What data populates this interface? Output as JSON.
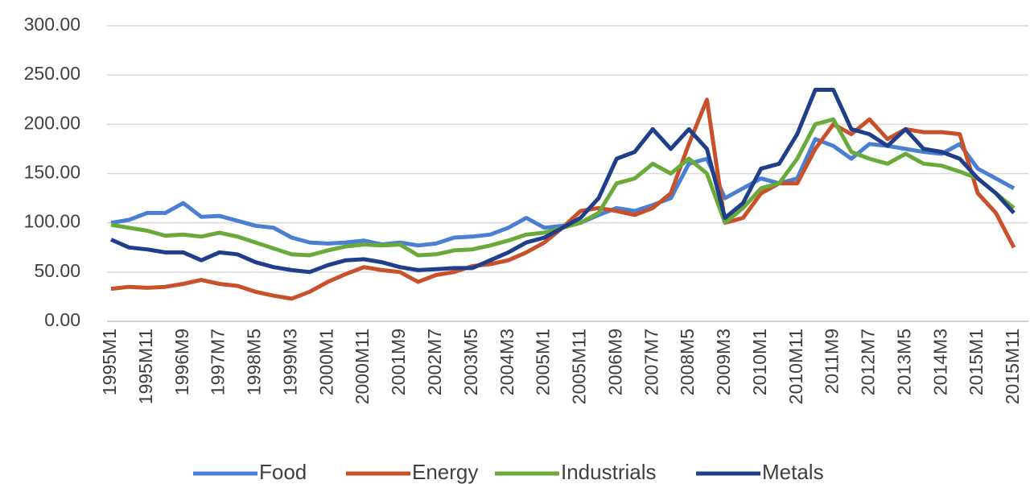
{
  "chart_data": {
    "type": "line",
    "categories": [
      "1995M1",
      null,
      "1995M11",
      null,
      "1996M9",
      null,
      "1997M7",
      null,
      "1998M5",
      null,
      "1999M3",
      null,
      "2000M1",
      null,
      "2000M11",
      null,
      "2001M9",
      null,
      "2002M7",
      null,
      "2003M5",
      null,
      "2004M3",
      null,
      "2005M1",
      null,
      "2005M11",
      null,
      "2006M9",
      null,
      "2007M7",
      null,
      "2008M5",
      null,
      "2009M3",
      null,
      "2010M1",
      null,
      "2010M11",
      null,
      "2011M9",
      null,
      "2012M7",
      null,
      "2013M5",
      null,
      "2014M3",
      null,
      "2015M1",
      null,
      "2015M11"
    ],
    "series": [
      {
        "name": "Food",
        "color": "#4a7fd4",
        "values": [
          100,
          103,
          110,
          110,
          120,
          106,
          107,
          102,
          97,
          95,
          85,
          80,
          79,
          80,
          82,
          78,
          80,
          77,
          79,
          85,
          86,
          88,
          95,
          105,
          95,
          97,
          100,
          108,
          115,
          112,
          118,
          125,
          160,
          165,
          125,
          135,
          145,
          140,
          145,
          185,
          178,
          165,
          180,
          178,
          175,
          172,
          170,
          180,
          155,
          145,
          135
        ]
      },
      {
        "name": "Energy",
        "color": "#c8502a",
        "values": [
          33,
          35,
          34,
          35,
          38,
          42,
          38,
          36,
          30,
          26,
          23,
          30,
          40,
          48,
          55,
          52,
          50,
          40,
          47,
          50,
          56,
          58,
          62,
          70,
          80,
          95,
          112,
          115,
          112,
          108,
          115,
          130,
          180,
          225,
          100,
          105,
          130,
          140,
          140,
          175,
          200,
          190,
          205,
          185,
          195,
          192,
          192,
          190,
          130,
          110,
          75
        ]
      },
      {
        "name": "Industrials",
        "color": "#6aaa3a",
        "values": [
          98,
          95,
          92,
          87,
          88,
          86,
          90,
          86,
          80,
          74,
          68,
          67,
          72,
          76,
          78,
          77,
          78,
          67,
          68,
          72,
          73,
          77,
          82,
          88,
          90,
          95,
          100,
          110,
          140,
          145,
          160,
          150,
          165,
          150,
          100,
          115,
          135,
          140,
          165,
          200,
          205,
          172,
          165,
          160,
          170,
          160,
          158,
          152,
          145,
          130,
          115
        ]
      },
      {
        "name": "Metals",
        "color": "#1f3f8a",
        "values": [
          83,
          75,
          73,
          70,
          70,
          62,
          70,
          68,
          60,
          55,
          52,
          50,
          57,
          62,
          63,
          60,
          55,
          52,
          53,
          54,
          54,
          62,
          70,
          80,
          85,
          95,
          105,
          125,
          165,
          172,
          195,
          175,
          195,
          175,
          105,
          120,
          155,
          160,
          190,
          235,
          235,
          195,
          190,
          178,
          195,
          175,
          172,
          165,
          145,
          130,
          110
        ]
      }
    ],
    "ylim": [
      0,
      300
    ],
    "yticks": [
      {
        "value": 0,
        "label": "0.00"
      },
      {
        "value": 50,
        "label": "50.00"
      },
      {
        "value": 100,
        "label": "100.00"
      },
      {
        "value": 150,
        "label": "150.00"
      },
      {
        "value": 200,
        "label": "200.00"
      },
      {
        "value": 250,
        "label": "250.00"
      },
      {
        "value": 300,
        "label": "300.00"
      }
    ],
    "grid": true,
    "legend": "bottom"
  }
}
